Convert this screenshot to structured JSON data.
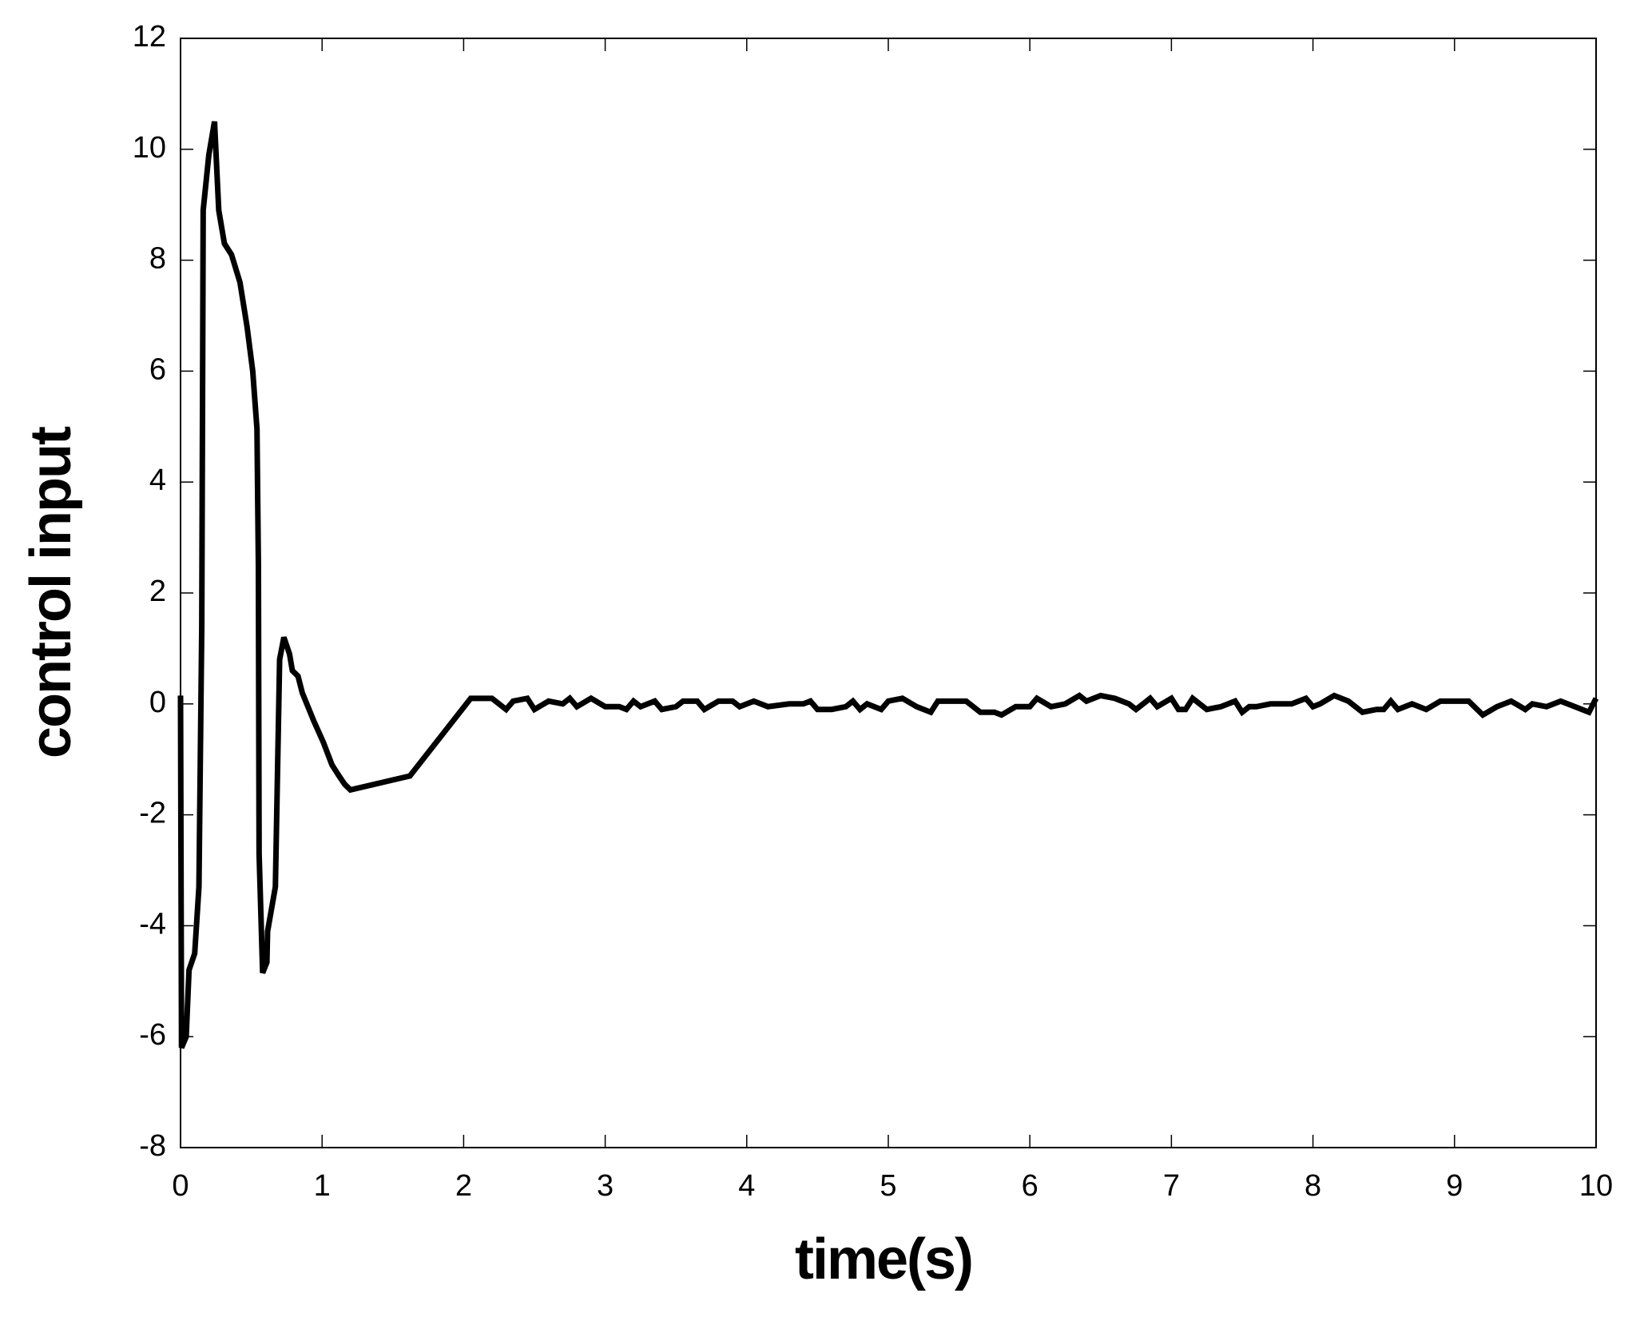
{
  "chart_data": {
    "type": "line",
    "xlabel": "time(s)",
    "ylabel": "control input",
    "xlim": [
      0,
      10
    ],
    "ylim": [
      -8,
      12
    ],
    "xticks": [
      0,
      1,
      2,
      3,
      4,
      5,
      6,
      7,
      8,
      9,
      10
    ],
    "yticks": [
      -8,
      -6,
      -4,
      -2,
      0,
      2,
      4,
      6,
      8,
      10,
      12
    ],
    "grid": false,
    "series": [
      {
        "color": "#000000",
        "x": [
          0,
          0.007,
          0.04,
          0.06,
          0.1,
          0.13,
          0.15,
          0.16,
          0.2,
          0.24,
          0.27,
          0.31,
          0.36,
          0.42,
          0.47,
          0.51,
          0.54,
          0.55,
          0.555,
          0.58,
          0.61,
          0.615,
          0.67,
          0.7,
          0.73,
          0.77,
          0.79,
          0.83,
          0.86,
          0.94,
          1.01,
          1.07,
          1.12,
          1.16,
          1.2,
          1.62,
          2.05,
          2.2,
          2.3,
          2.35,
          2.45,
          2.5,
          2.6,
          2.7,
          2.75,
          2.8,
          2.9,
          3.0,
          3.1,
          3.15,
          3.2,
          3.25,
          3.35,
          3.4,
          3.5,
          3.55,
          3.65,
          3.7,
          3.8,
          3.9,
          3.95,
          4.05,
          4.15,
          4.3,
          4.4,
          4.45,
          4.5,
          4.6,
          4.7,
          4.75,
          4.8,
          4.85,
          4.95,
          5.0,
          5.1,
          5.2,
          5.3,
          5.35,
          5.45,
          5.55,
          5.65,
          5.75,
          5.8,
          5.9,
          6.0,
          6.05,
          6.15,
          6.25,
          6.35,
          6.4,
          6.5,
          6.6,
          6.7,
          6.75,
          6.85,
          6.9,
          7.0,
          7.05,
          7.1,
          7.15,
          7.25,
          7.35,
          7.45,
          7.5,
          7.55,
          7.6,
          7.7,
          7.85,
          7.95,
          8.0,
          8.05,
          8.15,
          8.25,
          8.35,
          8.45,
          8.5,
          8.55,
          8.6,
          8.7,
          8.8,
          8.9,
          9.0,
          9.1,
          9.2,
          9.3,
          9.4,
          9.5,
          9.55,
          9.65,
          9.75,
          9.85,
          9.95,
          10.0
        ],
        "values": [
          0.15,
          -6.2,
          -6.0,
          -4.8,
          -4.5,
          -3.3,
          1.4,
          8.9,
          9.9,
          10.5,
          8.9,
          8.3,
          8.1,
          7.6,
          6.8,
          6.0,
          4.96,
          2.5,
          -2.7,
          -4.85,
          -4.66,
          -4.1,
          -3.3,
          0.8,
          1.2,
          0.9,
          0.6,
          0.5,
          0.2,
          -0.3,
          -0.7,
          -1.1,
          -1.3,
          -1.45,
          -1.55,
          -1.3,
          0.1,
          0.1,
          -0.1,
          0.05,
          0.1,
          -0.1,
          0.05,
          0,
          0.1,
          -0.05,
          0.1,
          -0.05,
          -0.05,
          -0.1,
          0.05,
          -0.05,
          0.05,
          -0.1,
          -0.05,
          0.05,
          0.05,
          -0.1,
          0.05,
          0.05,
          -0.05,
          0.05,
          -0.05,
          0,
          0,
          0.05,
          -0.1,
          -0.1,
          -0.05,
          0.05,
          -0.1,
          0,
          -0.1,
          0.05,
          0.1,
          -0.05,
          -0.15,
          0.05,
          0.05,
          0.05,
          -0.15,
          -0.15,
          -0.2,
          -0.05,
          -0.05,
          0.1,
          -0.05,
          0,
          0.15,
          0.05,
          0.15,
          0.1,
          0,
          -0.1,
          0.1,
          -0.05,
          0.1,
          -0.1,
          -0.1,
          0.1,
          -0.1,
          -0.05,
          0.05,
          -0.15,
          -0.05,
          -0.05,
          0,
          0,
          0.1,
          -0.05,
          0,
          0.15,
          0.05,
          -0.15,
          -0.1,
          -0.1,
          0.05,
          -0.1,
          0,
          -0.1,
          0.05,
          0.05,
          0.05,
          -0.2,
          -0.05,
          0.05,
          -0.1,
          0,
          -0.05,
          0.05,
          -0.05,
          -0.15,
          0.1
        ]
      }
    ]
  }
}
